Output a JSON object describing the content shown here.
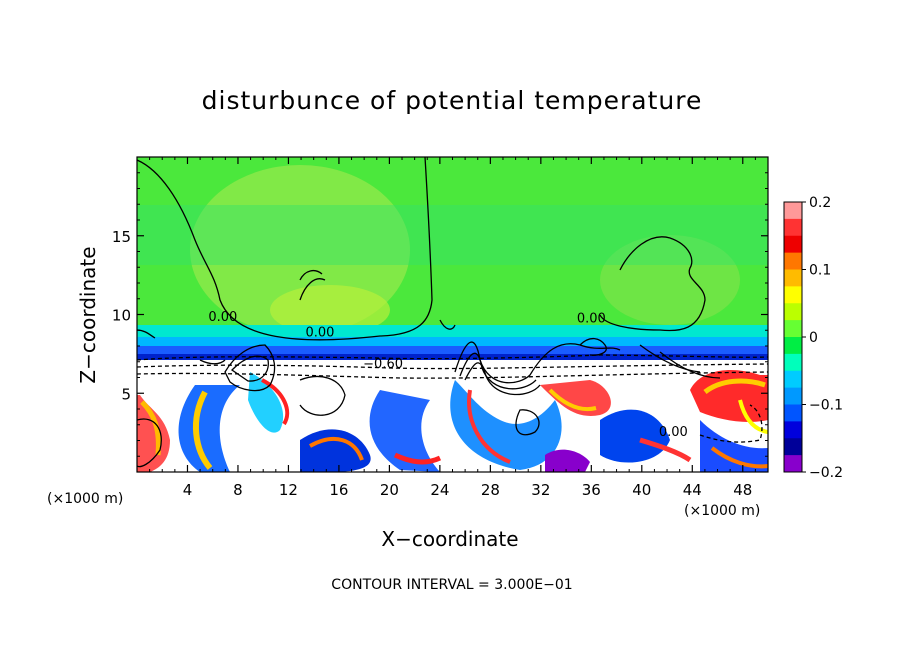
{
  "chart_data": {
    "type": "heatmap",
    "title": "disturbunce of potential temperature",
    "xlabel": "X−coordinate",
    "ylabel": "Z−coordinate",
    "x_unit": "(×1000 m)",
    "y_unit": "(×1000 m)",
    "xlim": [
      0,
      50
    ],
    "ylim": [
      0,
      20
    ],
    "x_ticks": [
      4,
      8,
      12,
      16,
      20,
      24,
      28,
      32,
      36,
      40,
      44,
      48
    ],
    "y_ticks": [
      5,
      10,
      15
    ],
    "colorbar": {
      "range": [
        -0.2,
        0.2
      ],
      "tick_values": [
        0.2,
        0.1,
        0,
        -0.1,
        -0.2
      ],
      "tick_labels": [
        "0.2",
        "0.1",
        "0",
        "−0.1",
        "−0.2"
      ],
      "colors": [
        "#ff9999",
        "#ff3333",
        "#ee0000",
        "#ff7700",
        "#ffbb00",
        "#ffff00",
        "#bbff00",
        "#66ff33",
        "#00ee44",
        "#00ffbb",
        "#00ccff",
        "#0099ff",
        "#0055ff",
        "#0000dd",
        "#000099",
        "#8800cc"
      ]
    },
    "contour_labels": [
      {
        "text": "0.00",
        "x": 6.8,
        "y": 9.6
      },
      {
        "text": "0.00",
        "x": 14.5,
        "y": 8.6
      },
      {
        "text": "0.00",
        "x": 36.0,
        "y": 9.5
      },
      {
        "text": "−0.60",
        "x": 19.5,
        "y": 6.6
      },
      {
        "text": "0.00",
        "x": 42.5,
        "y": 2.3
      }
    ],
    "contour_interval": "CONTOUR INTERVAL = 3.000E−01"
  }
}
